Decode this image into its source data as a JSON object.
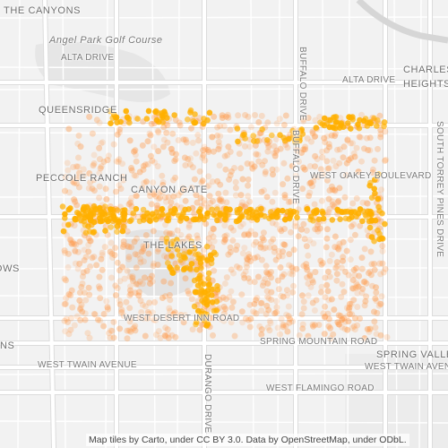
{
  "map": {
    "places": {
      "the_canyons": "THE CANYONS",
      "angel_park": "Angel Park Golf Course",
      "alta_drive_west": "ALTA DRIVE",
      "alta_drive_east": "ALTA DRIVE",
      "charleston_heights": "CHARLESTON HEIGHTS",
      "queensridge": "QUEENSRIDGE",
      "peccole_ranch": "PECCOLE RANCH",
      "canyon_gate": "CANYON GATE",
      "the_lakes": "THE LAKES",
      "meadows": "MEADOWS",
      "west_oakey": "WEST OAKEY BOULEVARD",
      "west_desert_inn": "WEST DESERT INN ROAD",
      "spring_mountain": "SPRING MOUNTAIN ROAD",
      "west_twain_west": "WEST TWAIN AVENUE",
      "west_twain_east": "WEST TWAIN AVENUE",
      "canyons_left": "NS",
      "spring_valley": "SPRING VALLEY",
      "west_flamingo": "WEST FLAMINGO ROAD",
      "buffalo_drive_n": "BUFFALO DRIVE",
      "buffalo_drive_s": "BUFFALO DRIVE",
      "durango_drive": "DURANGO DRIVE",
      "south_torrey_pines": "SOUTH TORREY PINES DRIVE"
    },
    "attribution": "Map tiles by Carto, under CC BY 3.0. Data by OpenStreetMap, under ODbL.",
    "colors": {
      "background": "#f2f2f2",
      "road": "#ffffff",
      "road_outline": "#dcdcdc",
      "park": "#e4e4e4",
      "dot_dense": "#ffb000",
      "dot_light": "#ff9a4a"
    }
  }
}
